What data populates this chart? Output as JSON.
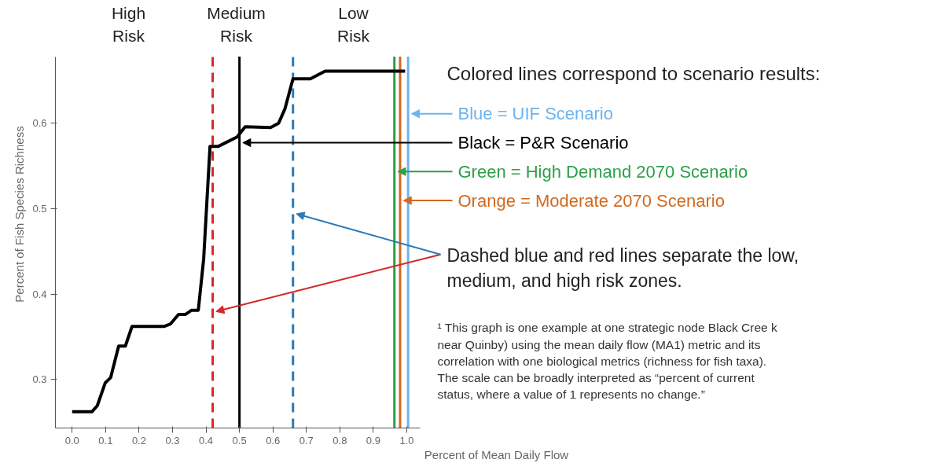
{
  "chart_data": {
    "type": "line",
    "xlabel": "Percent of Mean Daily Flow",
    "ylabel": "Percent of Fish Species Richness",
    "xlim": [
      -0.05,
      1.04
    ],
    "ylim": [
      0.243,
      0.678
    ],
    "xticks": [
      {
        "value": 0,
        "label": "0.0"
      },
      0.1,
      0.2,
      0.3,
      0.4,
      0.5,
      0.6,
      0.7,
      0.8,
      0.9,
      {
        "value": 1,
        "label": "1.0"
      }
    ],
    "yticks": [
      0.3,
      0.4,
      0.5,
      0.6
    ],
    "grid": false,
    "marker": "none",
    "line_style": "solid",
    "series": [
      {
        "color": "#000000",
        "x": [
          0,
          0.059,
          0.075,
          0.099,
          0.115,
          0.139,
          0.159,
          0.179,
          0.274,
          0.294,
          0.318,
          0.338,
          0.357,
          0.377,
          0.393,
          0.412,
          0.437,
          0.493,
          0.517,
          0.593,
          0.617,
          0.636,
          0.66,
          0.712,
          0.756,
          0.995
        ],
        "values": [
          0.262,
          0.262,
          0.269,
          0.296,
          0.302,
          0.339,
          0.339,
          0.362,
          0.362,
          0.365,
          0.376,
          0.376,
          0.381,
          0.381,
          0.441,
          0.573,
          0.573,
          0.584,
          0.596,
          0.595,
          0.6,
          0.617,
          0.652,
          0.652,
          0.661,
          0.661
        ]
      }
    ],
    "ref_lines": [
      {
        "axis": "x",
        "value": 1.004,
        "label": "Blue = UIF Scenario",
        "color": "#6cb4ee",
        "line_style": "solid"
      },
      {
        "axis": "x",
        "value": 0.5,
        "label": "Black = P&R Scenario",
        "color": "#000000",
        "line_style": "solid"
      },
      {
        "axis": "x",
        "value": 0.963,
        "label": "Green = High Demand 2070 Scenario",
        "color": "#2ca048",
        "line_style": "solid"
      },
      {
        "axis": "x",
        "value": 0.98,
        "label": "Orange = Moderate 2070 Scenario",
        "color": "#d2691e",
        "line_style": "solid"
      },
      {
        "axis": "x",
        "value": 0.42,
        "color": "#d62728",
        "line_style": "dashed"
      },
      {
        "axis": "x",
        "value": 0.66,
        "color": "#2a7ab8",
        "line_style": "dashed"
      }
    ],
    "annotations": [
      "High\nRisk",
      "Medium\nRisk",
      "Low\nRisk",
      "Colored lines correspond to scenario results:",
      "Dashed blue and red lines separate the low,\nmedium, and high risk zones.",
      "¹ This graph is one example at one strategic node Black Cree k\nnear Quinby) using the mean daily flow (MA1) metric and its\ncorrelation with one biological metrics (richness for fish taxa).\nThe scale can be broadly interpreted as “percent of current\nstatus, where a value of 1 represents no change.”"
    ]
  }
}
